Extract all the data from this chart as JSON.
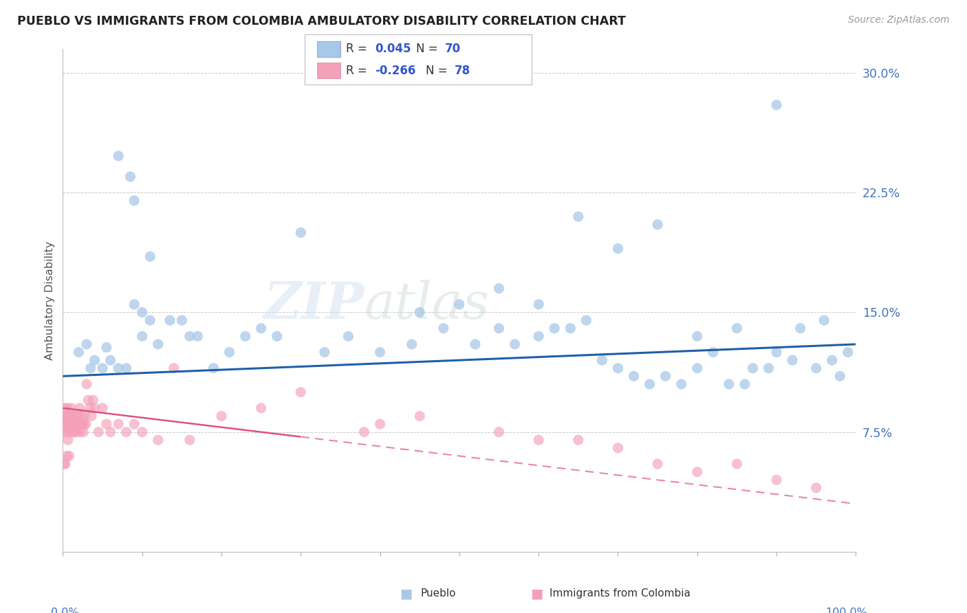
{
  "title": "PUEBLO VS IMMIGRANTS FROM COLOMBIA AMBULATORY DISABILITY CORRELATION CHART",
  "source": "Source: ZipAtlas.com",
  "ylabel": "Ambulatory Disability",
  "pueblo_color": "#a8c8e8",
  "colombia_color": "#f4a0b8",
  "trend_blue": "#1f5fa6",
  "trend_pink": "#e05080",
  "watermark_zip": "ZIP",
  "watermark_atlas": "atlas",
  "legend_box_color": "#e8f0f8",
  "legend_box_color2": "#fce8f0",
  "pueblo_x": [
    3.5,
    5.5,
    7.0,
    8.5,
    9.0,
    10.0,
    11.0,
    12.0,
    13.5,
    15.0,
    16.0,
    17.0,
    19.0,
    21.0,
    23.0,
    25.0,
    27.0,
    30.0,
    33.0,
    36.0,
    40.0,
    44.0,
    48.0,
    52.0,
    55.0,
    57.0,
    60.0,
    62.0,
    64.0,
    66.0,
    68.0,
    70.0,
    72.0,
    74.0,
    76.0,
    78.0,
    80.0,
    82.0,
    84.0,
    86.0,
    87.0,
    89.0,
    90.0,
    92.0,
    93.0,
    95.0,
    96.0,
    97.0,
    98.0,
    99.0,
    2.0,
    3.0,
    4.0,
    5.0,
    6.0,
    7.0,
    8.0,
    9.0,
    10.0,
    11.0,
    45.0,
    50.0,
    55.0,
    60.0,
    65.0,
    70.0,
    75.0,
    80.0,
    85.0,
    90.0
  ],
  "pueblo_y": [
    11.5,
    12.8,
    24.8,
    23.5,
    22.0,
    13.5,
    14.5,
    13.0,
    14.5,
    14.5,
    13.5,
    13.5,
    11.5,
    12.5,
    13.5,
    14.0,
    13.5,
    20.0,
    12.5,
    13.5,
    12.5,
    13.0,
    14.0,
    13.0,
    14.0,
    13.0,
    13.5,
    14.0,
    14.0,
    14.5,
    12.0,
    11.5,
    11.0,
    10.5,
    11.0,
    10.5,
    11.5,
    12.5,
    10.5,
    10.5,
    11.5,
    11.5,
    12.5,
    12.0,
    14.0,
    11.5,
    14.5,
    12.0,
    11.0,
    12.5,
    12.5,
    13.0,
    12.0,
    11.5,
    12.0,
    11.5,
    11.5,
    15.5,
    15.0,
    18.5,
    15.0,
    15.5,
    16.5,
    15.5,
    21.0,
    19.0,
    20.5,
    13.5,
    14.0,
    28.0
  ],
  "colombia_x": [
    0.1,
    0.15,
    0.2,
    0.25,
    0.3,
    0.35,
    0.4,
    0.45,
    0.5,
    0.55,
    0.6,
    0.65,
    0.7,
    0.75,
    0.8,
    0.85,
    0.9,
    0.95,
    1.0,
    1.05,
    1.1,
    1.15,
    1.2,
    1.25,
    1.3,
    1.35,
    1.4,
    1.5,
    1.6,
    1.7,
    1.8,
    1.9,
    2.0,
    2.1,
    2.2,
    2.3,
    2.4,
    2.5,
    2.6,
    2.7,
    2.8,
    2.9,
    3.0,
    3.2,
    3.4,
    3.6,
    3.8,
    4.0,
    4.5,
    5.0,
    5.5,
    6.0,
    7.0,
    8.0,
    9.0,
    10.0,
    12.0,
    14.0,
    16.0,
    20.0,
    25.0,
    30.0,
    38.0,
    40.0,
    45.0,
    55.0,
    60.0,
    65.0,
    70.0,
    75.0,
    80.0,
    85.0,
    90.0,
    95.0,
    0.2,
    0.3,
    0.5,
    0.8
  ],
  "colombia_y": [
    8.5,
    7.5,
    8.0,
    9.0,
    8.5,
    7.5,
    8.0,
    8.5,
    8.0,
    9.0,
    8.5,
    7.0,
    8.0,
    8.0,
    8.5,
    7.5,
    8.0,
    8.5,
    8.0,
    9.0,
    8.5,
    8.0,
    7.5,
    8.0,
    8.5,
    8.0,
    7.5,
    8.0,
    8.5,
    7.5,
    8.0,
    8.5,
    8.0,
    9.0,
    7.5,
    8.0,
    8.5,
    8.0,
    7.5,
    8.0,
    8.5,
    8.0,
    10.5,
    9.5,
    9.0,
    8.5,
    9.5,
    9.0,
    7.5,
    9.0,
    8.0,
    7.5,
    8.0,
    7.5,
    8.0,
    7.5,
    7.0,
    11.5,
    7.0,
    8.5,
    9.0,
    10.0,
    7.5,
    8.0,
    8.5,
    7.5,
    7.0,
    7.0,
    6.5,
    5.5,
    5.0,
    5.5,
    4.5,
    4.0,
    5.5,
    5.5,
    6.0,
    6.0
  ],
  "blue_trend_x": [
    0,
    100
  ],
  "blue_trend_y": [
    11.0,
    13.0
  ],
  "pink_trend_x": [
    0,
    100
  ],
  "pink_trend_y": [
    9.0,
    3.0
  ],
  "xlim": [
    0,
    100
  ],
  "ylim": [
    0,
    31.5
  ],
  "ytick_vals": [
    7.5,
    15.0,
    22.5,
    30.0
  ],
  "ytick_labels": [
    "7.5%",
    "15.0%",
    "22.5%",
    "30.0%"
  ],
  "xtick_vals": [
    0,
    10,
    20,
    30,
    40,
    50,
    60,
    70,
    80,
    90,
    100
  ]
}
